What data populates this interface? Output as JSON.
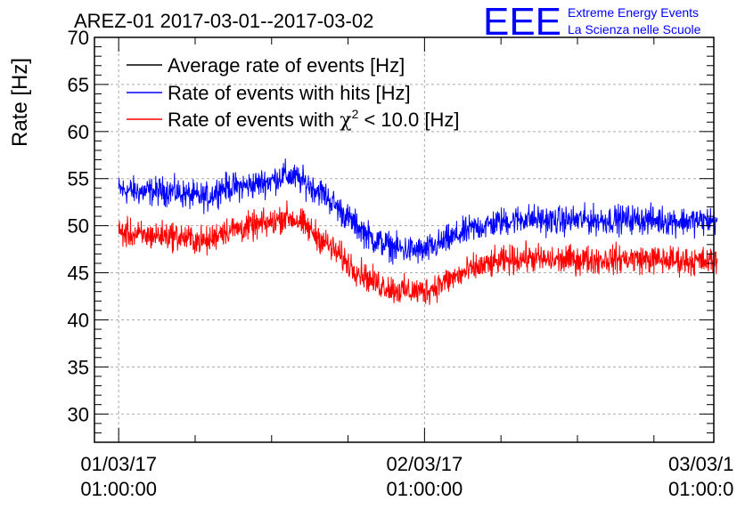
{
  "header": {
    "title": "AREZ-01 2017-03-01--2017-03-02",
    "logo_text": "EEE",
    "logo_line1": "Extreme Energy Events",
    "logo_line2": "La Scienza nelle Scuole"
  },
  "colors": {
    "average": "#000000",
    "hits": "#0000ff",
    "chi2": "#ff0000",
    "logo": "#0000ff",
    "grid": "#aaaaaa"
  },
  "chart_data": {
    "type": "line",
    "title": "AREZ-01 2017-03-01--2017-03-02",
    "ylabel": "Rate [Hz]",
    "xlabel": "",
    "ylim": [
      27,
      70
    ],
    "xlim_hours": [
      -1.9,
      46.7
    ],
    "grid": true,
    "legend_position": "top-left",
    "y_ticks": [
      "30",
      "35",
      "40",
      "45",
      "50",
      "55",
      "60",
      "65",
      "70"
    ],
    "x_ticks": [
      {
        "line1": "01/03/17",
        "line2": "01:00:00"
      },
      {
        "line1": "02/03/17",
        "line2": "01:00:00"
      },
      {
        "line1": "03/03/1",
        "line2": "01:00:0"
      }
    ],
    "legend": [
      {
        "label": "Average rate of events [Hz]",
        "color": "#000000"
      },
      {
        "label": "Rate of events with hits [Hz]",
        "color": "#0000ff"
      },
      {
        "label_prefix": "Rate of events with ",
        "label_symbol": "χ",
        "label_sup": "2",
        "label_suffix": " < 10.0 [Hz]",
        "color": "#ff0000"
      }
    ],
    "series": [
      {
        "name": "Rate of events with hits [Hz]",
        "color": "#0000ff",
        "x": [
          "01/03 00:00",
          "01/03 02:00",
          "01/03 04:00",
          "01/03 06:00",
          "01/03 07:00",
          "01/03 08:00",
          "01/03 10:00",
          "01/03 12:00",
          "01/03 13:00",
          "01/03 14:00",
          "01/03 16:00",
          "01/03 18:00",
          "01/03 20:00",
          "01/03 22:00",
          "02/03 00:00",
          "02/03 02:00",
          "02/03 04:00",
          "02/03 06:00",
          "02/03 08:00",
          "02/03 10:00",
          "02/03 12:00",
          "02/03 14:00",
          "02/03 16:00",
          "02/03 18:00",
          "02/03 20:00",
          "02/03 22:00",
          "02/03 23:00"
        ],
        "values": [
          53.8,
          53.6,
          53.7,
          53.1,
          53.0,
          54.0,
          54.2,
          54.8,
          55.4,
          55.0,
          53.5,
          50.8,
          48.5,
          47.5,
          47.3,
          48.6,
          49.8,
          50.4,
          50.8,
          50.5,
          50.6,
          50.6,
          50.7,
          50.6,
          50.5,
          50.5,
          50.6
        ]
      },
      {
        "name": "Rate of events with χ2 < 10.0 [Hz]",
        "color": "#ff0000",
        "x": [
          "01/03 00:00",
          "01/03 02:00",
          "01/03 04:00",
          "01/03 06:00",
          "01/03 07:00",
          "01/03 08:00",
          "01/03 10:00",
          "01/03 12:00",
          "01/03 13:00",
          "01/03 14:00",
          "01/03 16:00",
          "01/03 18:00",
          "01/03 20:00",
          "01/03 22:00",
          "02/03 00:00",
          "02/03 02:00",
          "02/03 04:00",
          "02/03 06:00",
          "02/03 08:00",
          "02/03 10:00",
          "02/03 12:00",
          "02/03 14:00",
          "02/03 16:00",
          "02/03 18:00",
          "02/03 20:00",
          "02/03 22:00",
          "02/03 23:00"
        ],
        "values": [
          49.3,
          48.9,
          49.0,
          48.5,
          48.3,
          49.4,
          49.8,
          50.3,
          51.0,
          50.6,
          48.5,
          46.0,
          44.0,
          43.1,
          43.0,
          44.3,
          45.5,
          46.2,
          46.6,
          46.3,
          46.4,
          46.4,
          46.5,
          46.4,
          46.3,
          46.2,
          46.2
        ]
      }
    ]
  }
}
